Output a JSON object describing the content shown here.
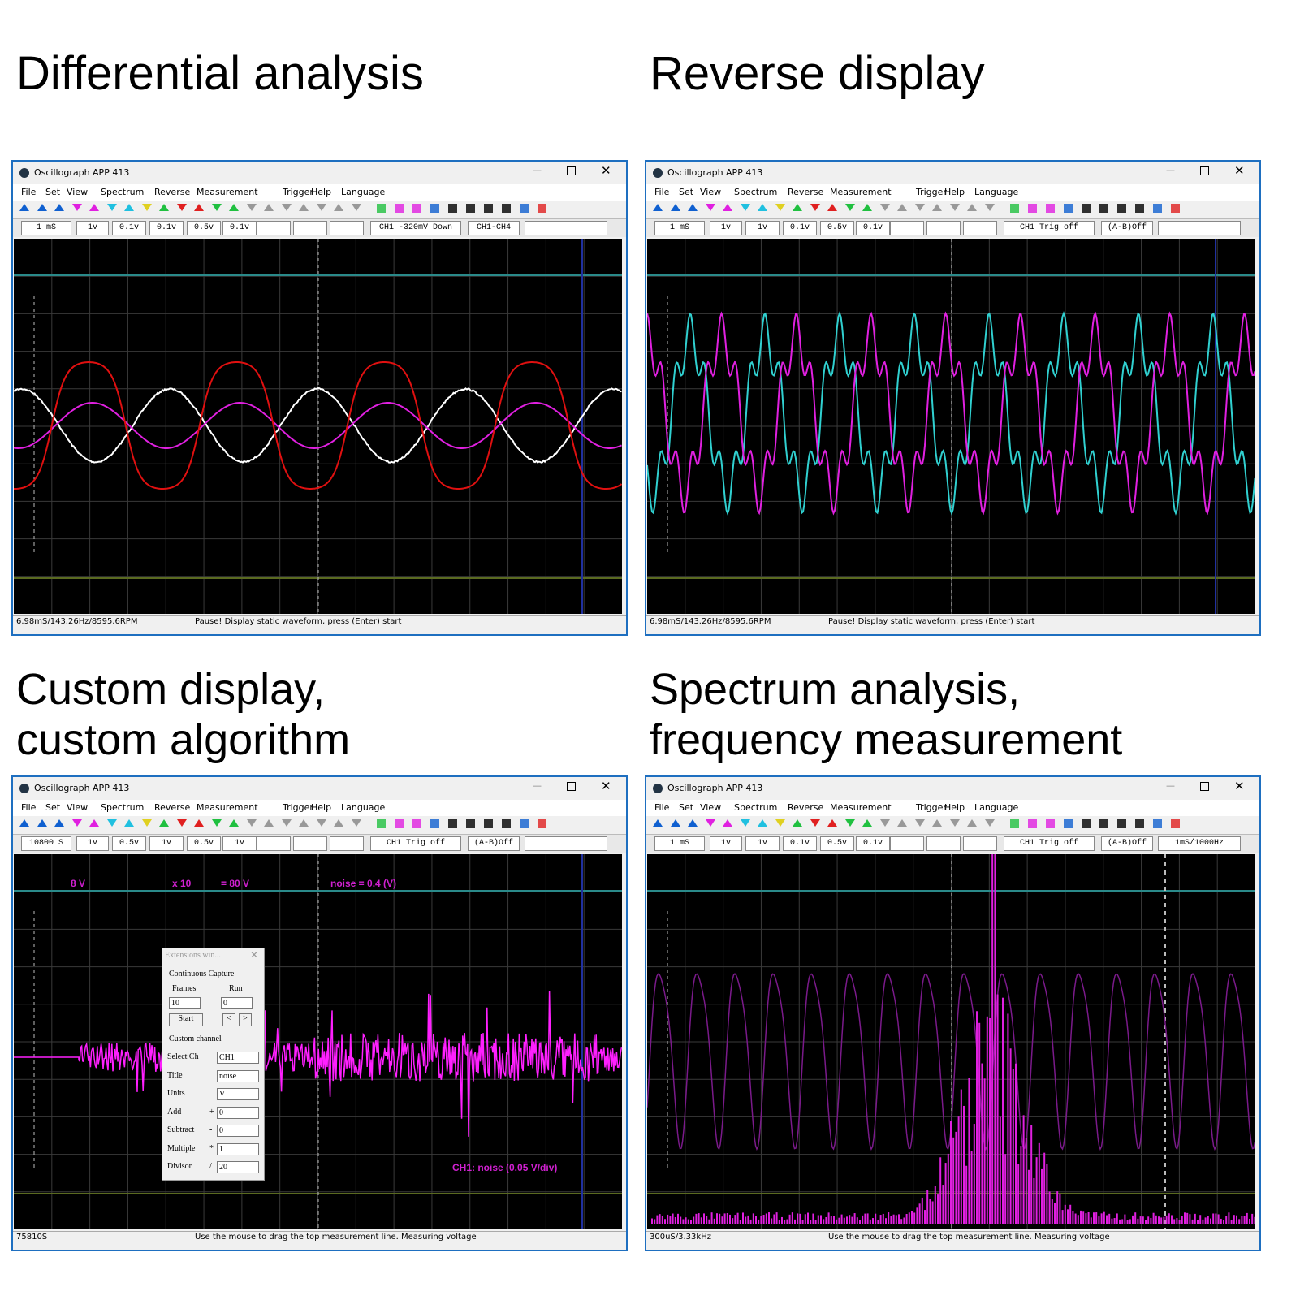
{
  "panels": [
    {
      "banner": [
        "Differential analysis"
      ],
      "window_title": "Oscillograph APP 413",
      "menu": [
        "File",
        "Set",
        "View",
        "Spectrum",
        "Reverse",
        "Measurement",
        "Trigger",
        "Help",
        "Language"
      ],
      "fields": [
        "1 mS",
        "1v",
        "0.1v",
        "0.1v",
        "0.5v",
        "0.1v",
        "CH1 -320mV Down",
        "CH1-CH4"
      ],
      "status": [
        "6.98mS/143.26Hz/8595.6RPM",
        "Pause! Display static waveform, press (Enter) start"
      ]
    },
    {
      "banner": [
        "Reverse display"
      ],
      "window_title": "Oscillograph APP 413",
      "menu": [
        "File",
        "Set",
        "View",
        "Spectrum",
        "Reverse",
        "Measurement",
        "Trigger",
        "Help",
        "Language"
      ],
      "fields": [
        "1 mS",
        "1v",
        "1v",
        "0.1v",
        "0.5v",
        "0.1v",
        "CH1 Trig off",
        "(A-B)Off"
      ],
      "status": [
        "6.98mS/143.26Hz/8595.6RPM",
        "Pause! Display static waveform, press (Enter) start"
      ]
    },
    {
      "banner": [
        "Custom display,",
        "custom algorithm"
      ],
      "window_title": "Oscillograph APP 413",
      "menu": [
        "File",
        "Set",
        "View",
        "Spectrum",
        "Reverse",
        "Measurement",
        "Trigger",
        "Help",
        "Language"
      ],
      "fields": [
        "10800 S",
        "1v",
        "0.5v",
        "1v",
        "0.5v",
        "1v",
        "CH1 Trig off",
        "(A-B)Off"
      ],
      "status": [
        "75810S",
        "Use the mouse to drag the top measurement line. Measuring voltage"
      ],
      "overlays": [
        "8 V",
        "x 10",
        "= 80 V",
        "noise = 0.4 (V)",
        "CH1: noise (0.05 V/div)"
      ],
      "dialog": {
        "title": "Extensions win...",
        "capture": {
          "label": "Continuous Capture",
          "frames_label": "Frames",
          "run_label": "Run",
          "frames": "10",
          "run": "0",
          "start": "Start",
          "prev": "<",
          "next": ">"
        },
        "custom": {
          "label": "Custom channel",
          "rows": [
            [
              "Select Ch",
              "CH1"
            ],
            [
              "Title",
              "noise"
            ],
            [
              "Units",
              "V"
            ],
            [
              "Add",
              "+",
              "0"
            ],
            [
              "Subtract",
              "-",
              "0"
            ],
            [
              "Multiple",
              "*",
              "1"
            ],
            [
              "Divisor",
              "/",
              "20"
            ]
          ]
        }
      }
    },
    {
      "banner": [
        "Spectrum  analysis,",
        "frequency measurement"
      ],
      "window_title": "Oscillograph APP 413",
      "menu": [
        "File",
        "Set",
        "View",
        "Spectrum",
        "Reverse",
        "Measurement",
        "Trigger",
        "Help",
        "Language"
      ],
      "fields": [
        "1 mS",
        "1v",
        "1v",
        "0.1v",
        "0.5v",
        "0.1v",
        "CH1 Trig off",
        "(A-B)Off",
        "1mS/1000Hz"
      ],
      "status": [
        "300uS/3.33kHz",
        "Use the mouse to drag the top measurement line. Measuring voltage"
      ]
    }
  ]
}
